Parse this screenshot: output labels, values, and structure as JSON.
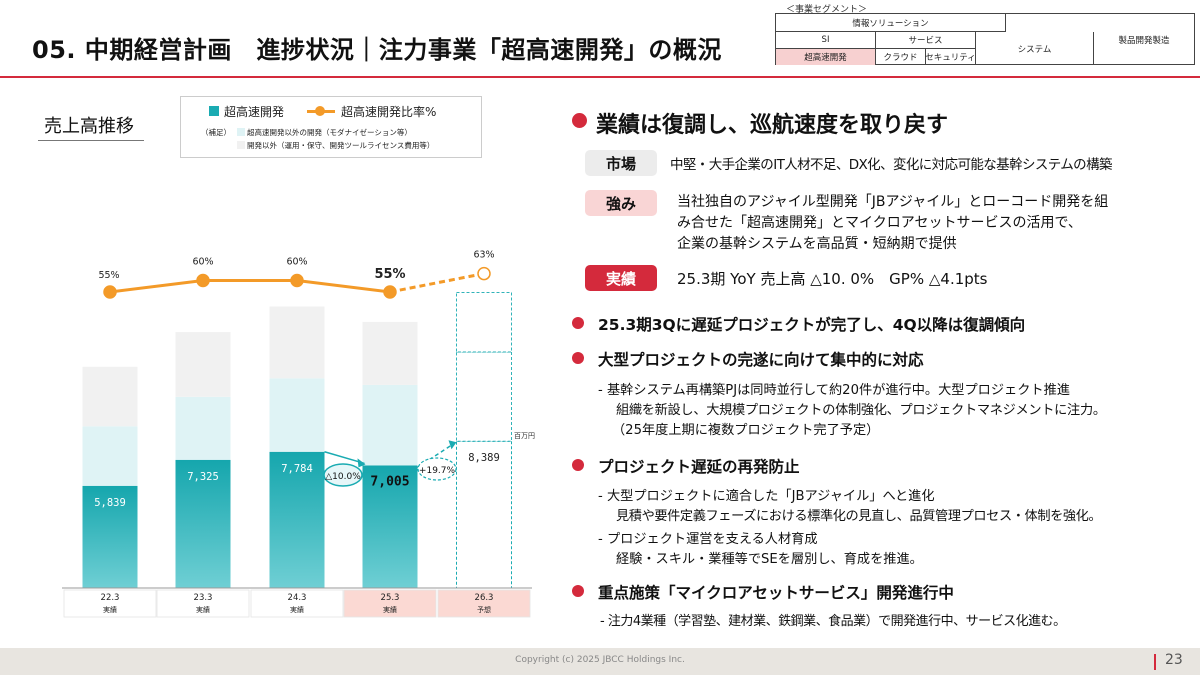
{
  "header": {
    "title": "05. 中期経営計画　進捗状況｜注力事業「超高速開発」の概況"
  },
  "segment_table": {
    "caption": "＜事業セグメント＞",
    "info_solution": "情報ソリューション",
    "si": "SI",
    "service": "サービス",
    "system": "システム",
    "product_dev": "製品開発製造",
    "rapid_dev": "超高速開発",
    "cloud": "クラウド",
    "security": "セキュリティ"
  },
  "chart_panel": {
    "heading": "売上高推移",
    "legend": {
      "bar_label": "超高速開発",
      "line_label": "超高速開発比率%",
      "note_prefix": "（補足）",
      "note1": "超高速開発以外の開発（モダナイゼーション等）",
      "note2": "開発以外（運用・保守、開発ツールライセンス費用等）"
    },
    "unit": "百万円",
    "yoy_down": "△10.0%",
    "yoy_up": "+19.7%"
  },
  "chart_data": {
    "type": "bar",
    "categories": [
      "22.3",
      "23.3",
      "24.3",
      "25.3",
      "26.3"
    ],
    "category_sublabels": [
      "実績",
      "実績",
      "実績",
      "実績",
      "予想"
    ],
    "series": [
      {
        "name": "超高速開発",
        "values": [
          5839,
          7325,
          7784,
          7005,
          8389
        ]
      },
      {
        "name": "超高速開発以外の開発（モダナイゼーション等）",
        "values": [
          3400,
          3600,
          4200,
          4600,
          5100
        ]
      },
      {
        "name": "開発以外（運用・保守、開発ツールライセンス費用等）",
        "values": [
          3400,
          3700,
          4100,
          3600,
          3400
        ]
      }
    ],
    "line": {
      "name": "超高速開発比率%",
      "values": [
        55,
        60,
        60,
        55,
        63
      ],
      "labels": [
        "55%",
        "60%",
        "60%",
        "55%",
        "63%"
      ]
    },
    "bar_labels": [
      "5,839",
      "7,325",
      "7,784",
      "7,005",
      "8,389"
    ],
    "forecast_index": 4
  },
  "right_panel": {
    "headline": "業績は復調し、巡航速度を取り戻す",
    "market_tag": "市場",
    "market_text": "中堅・大手企業のIT人材不足、DX化、変化に対応可能な基幹システムの構築",
    "strength_tag": "強み",
    "strength_lines": [
      "当社独自のアジャイル型開発「JBアジャイル」とローコード開発を組",
      "み合せた「超高速開発」とマイクロアセットサービスの活用で、",
      "企業の基幹システムを高品質・短納期で提供"
    ],
    "result_tag": "実績",
    "result_text": "25.3期 YoY  売上高 △10. 0%　GP% △4.1pts",
    "sections": [
      {
        "title": "25.3期3Qに遅延プロジェクトが完了し、4Q以降は復調傾向",
        "lines": []
      },
      {
        "title": "大型プロジェクトの完遂に向けて集中的に対応",
        "lines": [
          "- 基幹システム再構築PJは同時並行して約20件が進行中。大型プロジェクト推進",
          "組織を新設し、大規模プロジェクトの体制強化、プロジェクトマネジメントに注力。",
          "（25年度上期に複数プロジェクト完了予定）"
        ]
      },
      {
        "title": "プロジェクト遅延の再発防止",
        "lines": [
          "- 大型プロジェクトに適合した「JBアジャイル」へと進化",
          "見積や要件定義フェーズにおける標準化の見直し、品質管理プロセス・体制を強化。",
          "- プロジェクト運営を支える人材育成",
          "経験・スキル・業種等でSEを層別し、育成を推進。"
        ]
      },
      {
        "title": "重点施策「マイクロアセットサービス」開発進行中",
        "lines": [
          "-  注力4業種（学習塾、建材業、鉄鋼業、食品業）で開発進行中、サービス化進む。"
        ]
      }
    ]
  },
  "footer": {
    "copyright": "Copyright (c) 2025 JBCC Holdings Inc.",
    "page_number": "23"
  }
}
